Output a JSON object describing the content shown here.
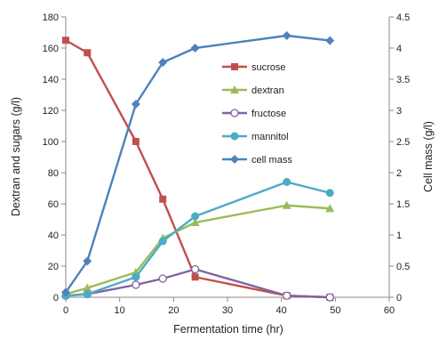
{
  "chart_data": {
    "type": "line",
    "title": "",
    "xlabel": "Fermentation time (hr)",
    "ylabel": "Dextran and sugars  (g/l)",
    "y2label": "Cell mass (g/l)",
    "xlim": [
      0,
      60
    ],
    "ylim": [
      0,
      180
    ],
    "y2lim": [
      0,
      4.5
    ],
    "x_ticks": [
      0,
      10,
      20,
      30,
      40,
      50,
      60
    ],
    "y_ticks": [
      0,
      20,
      40,
      60,
      80,
      100,
      120,
      140,
      160,
      180
    ],
    "y2_ticks": [
      "0",
      "0.5",
      "1",
      "1.5",
      "2",
      "2.5",
      "3",
      "3.5",
      "4",
      "4.5"
    ],
    "grid": false,
    "legend_position": "top-center",
    "series": [
      {
        "name": "sucrose",
        "axis": "left",
        "color": "#C0504D",
        "marker": "square",
        "x": [
          0,
          4,
          13,
          18,
          24,
          41,
          49
        ],
        "y": [
          165,
          157,
          100,
          63,
          13,
          1,
          0
        ]
      },
      {
        "name": "dextran",
        "axis": "left",
        "color": "#9BBB59",
        "marker": "triangle",
        "x": [
          0,
          4,
          13,
          18,
          24,
          41,
          49
        ],
        "y": [
          2,
          6,
          16,
          38,
          48,
          59,
          57
        ]
      },
      {
        "name": "fructose",
        "axis": "left",
        "color": "#8064A2",
        "marker": "circle-open",
        "x": [
          0,
          4,
          13,
          18,
          24,
          41,
          49
        ],
        "y": [
          1,
          2,
          8,
          12,
          18,
          1,
          0
        ]
      },
      {
        "name": "mannitol",
        "axis": "left",
        "color": "#4BACC6",
        "marker": "circle",
        "x": [
          0,
          4,
          13,
          18,
          24,
          41,
          49
        ],
        "y": [
          1,
          2,
          13,
          36,
          52,
          74,
          67
        ]
      },
      {
        "name": "cell mass",
        "axis": "right",
        "color": "#4F81BD",
        "marker": "diamond",
        "x": [
          0,
          4,
          13,
          18,
          24,
          41,
          49
        ],
        "y": [
          0.08,
          0.58,
          3.1,
          3.77,
          4.0,
          4.2,
          4.12
        ]
      }
    ]
  }
}
